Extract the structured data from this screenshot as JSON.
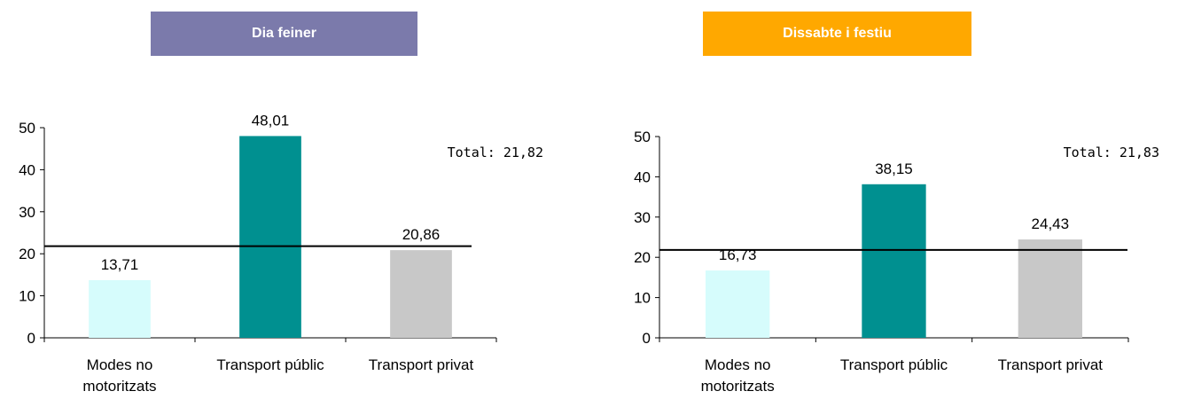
{
  "headers": {
    "weekday": "Dia feiner",
    "weekend": "Dissabte i festiu"
  },
  "colors": {
    "weekday_header": "#7b7aab",
    "weekend_header": "#ffa800",
    "non_motorized": "#d6fcfc",
    "public_transport": "#009090",
    "private_transport": "#c8c8c8",
    "reference_line": "#000000"
  },
  "chart_data": [
    {
      "type": "bar",
      "categories": [
        [
          "Modes no",
          "motoritzats"
        ],
        [
          "Transport públic"
        ],
        [
          "Transport privat"
        ]
      ],
      "values": [
        13.71,
        48.01,
        20.86
      ],
      "value_labels": [
        "13,71",
        "48,01",
        "20,86"
      ],
      "reference_line": 21.82,
      "total_label": "Total: 21,82",
      "ylim": [
        0,
        50
      ],
      "yticks": [
        0,
        10,
        20,
        30,
        40,
        50
      ],
      "grid": false,
      "legend": "none"
    },
    {
      "type": "bar",
      "categories": [
        [
          "Modes no",
          "motoritzats"
        ],
        [
          "Transport públic"
        ],
        [
          "Transport privat"
        ]
      ],
      "values": [
        16.73,
        38.15,
        24.43
      ],
      "value_labels": [
        "16,73",
        "38,15",
        "24,43"
      ],
      "reference_line": 21.83,
      "total_label": "Total: 21,83",
      "ylim": [
        0,
        50
      ],
      "yticks": [
        0,
        10,
        20,
        30,
        40,
        50
      ],
      "grid": false,
      "legend": "none"
    }
  ]
}
